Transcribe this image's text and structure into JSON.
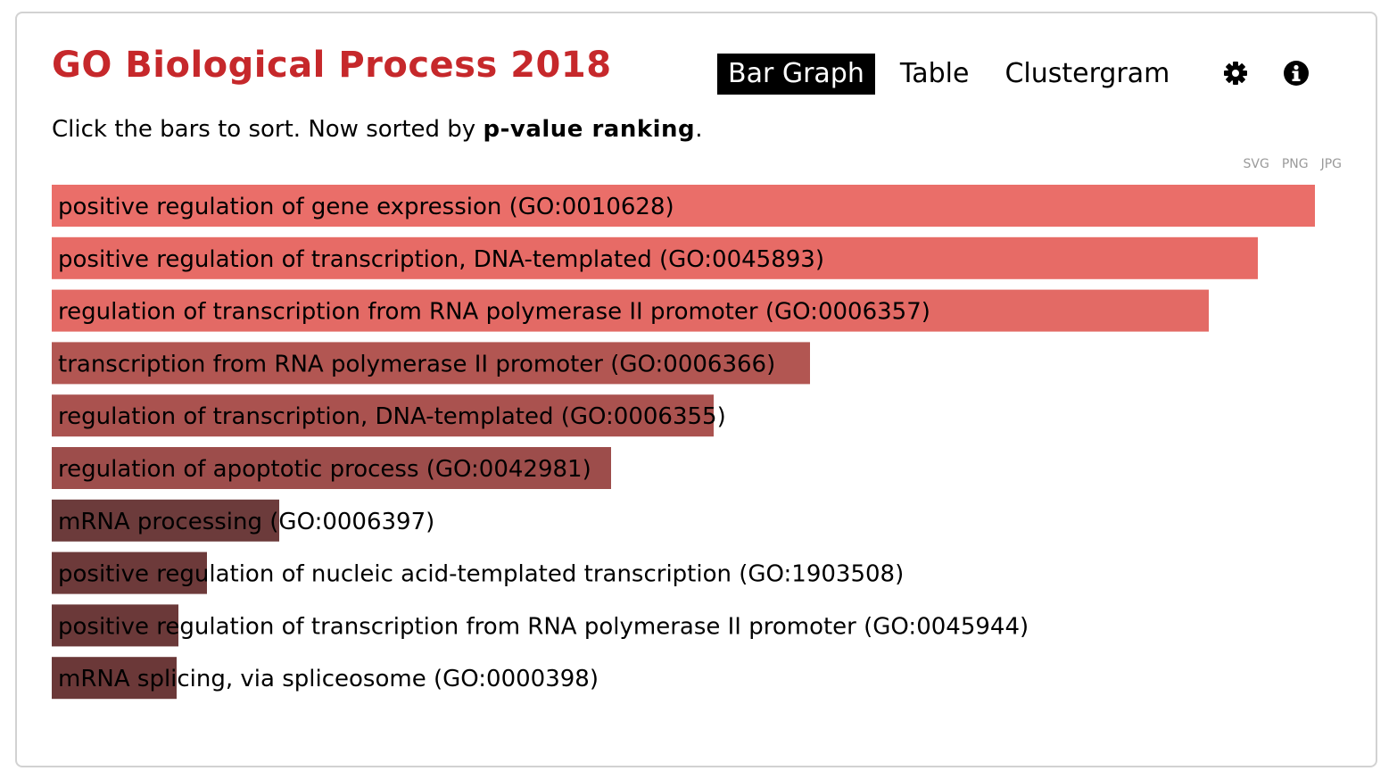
{
  "header": {
    "title": "GO Biological Process 2018",
    "tabs": [
      {
        "label": "Bar Graph",
        "active": true
      },
      {
        "label": "Table",
        "active": false
      },
      {
        "label": "Clustergram",
        "active": false
      }
    ],
    "icons": [
      "gear-icon",
      "info-icon"
    ]
  },
  "subtitle": {
    "prefix": "Click the bars to sort. Now sorted by ",
    "sort_key": "p-value ranking",
    "suffix": "."
  },
  "exports": [
    "SVG",
    "PNG",
    "JPG"
  ],
  "colors": {
    "title": "#c6282b",
    "bar_strong": "#e96e69",
    "bar_mid": "#a8524f",
    "bar_weak": "#6c3a3a"
  },
  "chart_data": {
    "type": "bar",
    "orientation": "horizontal",
    "categories": [
      "positive regulation of gene expression (GO:0010628)",
      "positive regulation of transcription, DNA-templated (GO:0045893)",
      "regulation of transcription from RNA polymerase II promoter (GO:0006357)",
      "transcription from RNA polymerase II promoter (GO:0006366)",
      "regulation of transcription, DNA-templated (GO:0006355)",
      "regulation of apoptotic process (GO:0042981)",
      "mRNA processing (GO:0006397)",
      "positive regulation of nucleic acid-templated transcription (GO:1903508)",
      "positive regulation of transcription from RNA polymerase II promoter (GO:0045944)",
      "mRNA splicing, via spliceosome (GO:0000398)"
    ],
    "values": [
      1.0,
      0.955,
      0.916,
      0.6,
      0.524,
      0.443,
      0.18,
      0.123,
      0.1,
      0.099
    ],
    "bar_colors": [
      "#ea6e69",
      "#e76b66",
      "#e36a65",
      "#b25652",
      "#aa524f",
      "#9d4d4b",
      "#6c3b3b",
      "#6d3a3a",
      "#6b3939",
      "#6b3838"
    ],
    "sorted_by": "p-value ranking"
  }
}
